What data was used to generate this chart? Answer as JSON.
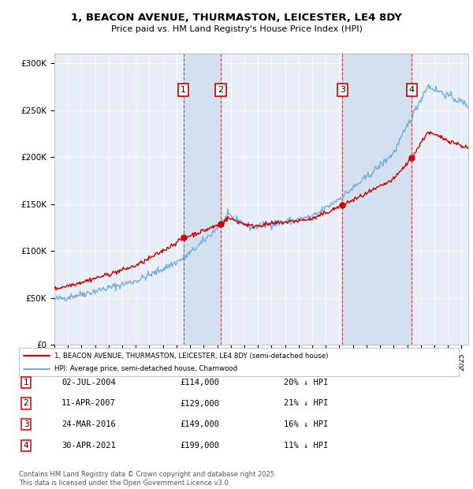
{
  "title_line1": "1, BEACON AVENUE, THURMASTON, LEICESTER, LE4 8DY",
  "title_line2": "Price paid vs. HM Land Registry's House Price Index (HPI)",
  "background_color": "#ffffff",
  "plot_bg_color": "#e8eef8",
  "transactions": [
    {
      "num": 1,
      "date": "2004-07-02",
      "display_date": "02-JUL-2004",
      "price": 114000,
      "display_price": "£114,000",
      "pct": "20% ↓ HPI",
      "year": 2004.5
    },
    {
      "num": 2,
      "date": "2007-04-11",
      "display_date": "11-APR-2007",
      "price": 129000,
      "display_price": "£129,000",
      "pct": "21% ↓ HPI",
      "year": 2007.25
    },
    {
      "num": 3,
      "date": "2016-03-24",
      "display_date": "24-MAR-2016",
      "price": 149000,
      "display_price": "£149,000",
      "pct": "16% ↓ HPI",
      "year": 2016.23
    },
    {
      "num": 4,
      "date": "2021-04-30",
      "display_date": "30-APR-2021",
      "price": 199000,
      "display_price": "£199,000",
      "pct": "11% ↓ HPI",
      "year": 2021.33
    }
  ],
  "legend_property": "1, BEACON AVENUE, THURMASTON, LEICESTER, LE4 8DY (semi-detached house)",
  "legend_hpi": "HPI: Average price, semi-detached house, Charnwood",
  "footer": "Contains HM Land Registry data © Crown copyright and database right 2025.\nThis data is licensed under the Open Government Licence v3.0.",
  "property_color": "#cc0000",
  "hpi_color": "#7aaddc",
  "marker_color": "#cc0000",
  "shade_color": "#d0dff0",
  "ylim_max": 310000,
  "xlim_min": 1995,
  "xlim_max": 2025.5,
  "yticks": [
    0,
    50000,
    100000,
    150000,
    200000,
    250000,
    300000
  ],
  "ylabels": [
    "£0",
    "£50K",
    "£100K",
    "£150K",
    "£200K",
    "£250K",
    "£300K"
  ]
}
